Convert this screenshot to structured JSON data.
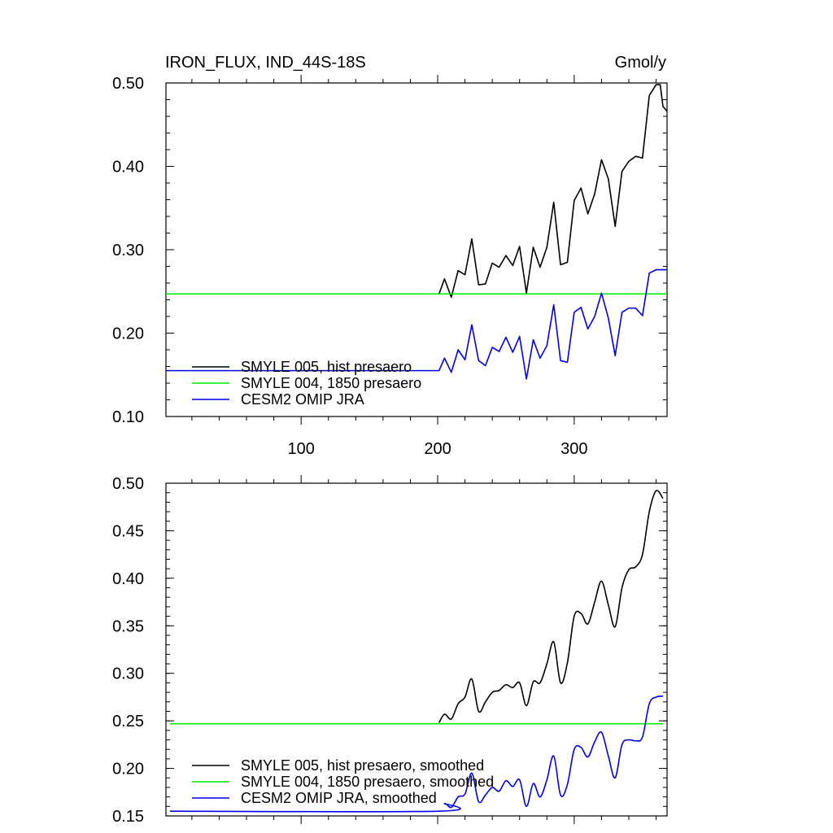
{
  "chart_data": [
    {
      "type": "line",
      "title": "IRON_FLUX, IND_44S-18S",
      "units_label": "Gmol/y",
      "xlim": [
        1,
        368
      ],
      "ylim": [
        0.1,
        0.5
      ],
      "x_ticks": [
        100,
        200,
        300
      ],
      "y_ticks": [
        0.1,
        0.2,
        0.3,
        0.4,
        0.5
      ],
      "y_tick_labels": [
        "0.10",
        "0.20",
        "0.30",
        "0.40",
        "0.50"
      ],
      "legend_placement": "lower-left",
      "series": [
        {
          "name": "SMYLE 005, hist presaero",
          "color": "#000000",
          "x": [
            201,
            205,
            210,
            215,
            220,
            225,
            230,
            235,
            240,
            245,
            250,
            255,
            260,
            265,
            270,
            275,
            280,
            285,
            290,
            295,
            300,
            305,
            310,
            315,
            320,
            325,
            330,
            335,
            340,
            345,
            350,
            355,
            360,
            363,
            365,
            368
          ],
          "y": [
            0.247,
            0.265,
            0.243,
            0.275,
            0.27,
            0.313,
            0.258,
            0.259,
            0.284,
            0.279,
            0.293,
            0.281,
            0.304,
            0.248,
            0.303,
            0.279,
            0.303,
            0.357,
            0.282,
            0.285,
            0.359,
            0.374,
            0.343,
            0.367,
            0.408,
            0.385,
            0.328,
            0.394,
            0.406,
            0.412,
            0.41,
            0.485,
            0.498,
            0.498,
            0.472,
            0.466
          ]
        },
        {
          "name": "SMYLE 004, 1850 presaero",
          "color": "#00ee00",
          "x": [
            1,
            368
          ],
          "y": [
            0.247,
            0.247
          ]
        },
        {
          "name": "CESM2 OMIP JRA",
          "color": "#0000ee",
          "x": [
            1,
            201,
            205,
            210,
            215,
            220,
            225,
            230,
            235,
            240,
            245,
            250,
            255,
            260,
            265,
            270,
            275,
            280,
            285,
            290,
            295,
            300,
            305,
            310,
            315,
            320,
            325,
            330,
            335,
            340,
            345,
            350,
            355,
            360,
            365,
            368
          ],
          "y": [
            0.155,
            0.155,
            0.17,
            0.153,
            0.18,
            0.168,
            0.21,
            0.167,
            0.161,
            0.183,
            0.178,
            0.195,
            0.177,
            0.196,
            0.145,
            0.192,
            0.17,
            0.185,
            0.234,
            0.167,
            0.165,
            0.225,
            0.231,
            0.205,
            0.22,
            0.248,
            0.218,
            0.173,
            0.225,
            0.23,
            0.23,
            0.221,
            0.272,
            0.276,
            0.276,
            0.276
          ]
        }
      ]
    },
    {
      "type": "line",
      "title": "",
      "xlim": [
        1,
        368
      ],
      "ylim": [
        0.15,
        0.5
      ],
      "x_ticks": [
        100,
        200,
        300
      ],
      "y_ticks": [
        0.15,
        0.2,
        0.25,
        0.3,
        0.35,
        0.4,
        0.45,
        0.5
      ],
      "y_tick_labels": [
        "0.15",
        "0.20",
        "0.25",
        "0.30",
        "0.35",
        "0.40",
        "0.45",
        "0.50"
      ],
      "legend_placement": "lower-left",
      "series": [
        {
          "name": "SMYLE 005, hist presaero, smoothed",
          "color": "#000000",
          "x": [
            201,
            205,
            210,
            215,
            220,
            225,
            230,
            235,
            240,
            245,
            250,
            255,
            260,
            265,
            270,
            275,
            280,
            285,
            290,
            295,
            300,
            305,
            310,
            315,
            320,
            325,
            330,
            335,
            340,
            345,
            350,
            355,
            360,
            365
          ],
          "y": [
            0.248,
            0.257,
            0.252,
            0.268,
            0.275,
            0.294,
            0.26,
            0.27,
            0.28,
            0.282,
            0.288,
            0.285,
            0.29,
            0.266,
            0.291,
            0.29,
            0.31,
            0.333,
            0.29,
            0.311,
            0.36,
            0.363,
            0.352,
            0.375,
            0.397,
            0.372,
            0.349,
            0.39,
            0.409,
            0.412,
            0.425,
            0.47,
            0.492,
            0.484
          ]
        },
        {
          "name": "SMYLE 004, 1850 presaero, smoothed",
          "color": "#00ee00",
          "x": [
            4,
            365
          ],
          "y": [
            0.247,
            0.247
          ]
        },
        {
          "name": "CESM2 OMIP JRA, smoothed",
          "color": "#0000ee",
          "x": [
            4,
            201,
            205,
            210,
            215,
            220,
            225,
            230,
            235,
            240,
            245,
            250,
            255,
            260,
            265,
            270,
            275,
            280,
            285,
            290,
            295,
            300,
            305,
            310,
            315,
            320,
            325,
            330,
            335,
            340,
            345,
            350,
            355,
            360,
            365
          ],
          "y": [
            0.155,
            0.155,
            0.163,
            0.159,
            0.17,
            0.173,
            0.195,
            0.165,
            0.172,
            0.18,
            0.176,
            0.187,
            0.181,
            0.188,
            0.16,
            0.184,
            0.17,
            0.188,
            0.213,
            0.172,
            0.183,
            0.22,
            0.222,
            0.212,
            0.228,
            0.238,
            0.213,
            0.19,
            0.225,
            0.23,
            0.229,
            0.233,
            0.268,
            0.275,
            0.276
          ]
        }
      ]
    }
  ]
}
